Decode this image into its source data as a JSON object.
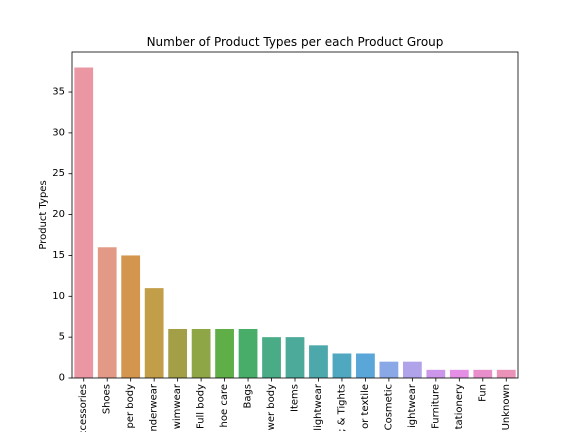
{
  "chart_data": {
    "type": "bar",
    "title": "Number of Product Types per each Product Group",
    "xlabel": "",
    "ylabel": "Product Types",
    "ylim": [
      0,
      39.9
    ],
    "yticks": [
      0,
      5,
      10,
      15,
      20,
      25,
      30,
      35
    ],
    "grid": false,
    "legend": "none",
    "categories": [
      "ccessories",
      "Shoes",
      "per body",
      "nderwear",
      "wimwear",
      "Full body",
      "hoe care",
      "Bags",
      "wer body",
      "Items",
      "lightwear",
      "; & Tights",
      "or textile",
      "Cosmetic",
      "ightwear",
      "Furniture",
      "tationery",
      "Fun",
      "Unknown"
    ],
    "values": [
      38,
      16,
      15,
      11,
      6,
      6,
      6,
      6,
      5,
      5,
      4,
      3,
      3,
      2,
      2,
      1,
      1,
      1,
      1
    ],
    "colors": [
      "#ea96a3",
      "#e29986",
      "#d4954e",
      "#c39e48",
      "#a39f46",
      "#8fa646",
      "#60ae47",
      "#49ad6a",
      "#4aab87",
      "#4baa99",
      "#4ca8ab",
      "#4fa8c0",
      "#5aa6d8",
      "#8ba8e6",
      "#b1a3ea",
      "#cc97ea",
      "#e48ee6",
      "#e88fcb",
      "#ea92b7"
    ]
  }
}
